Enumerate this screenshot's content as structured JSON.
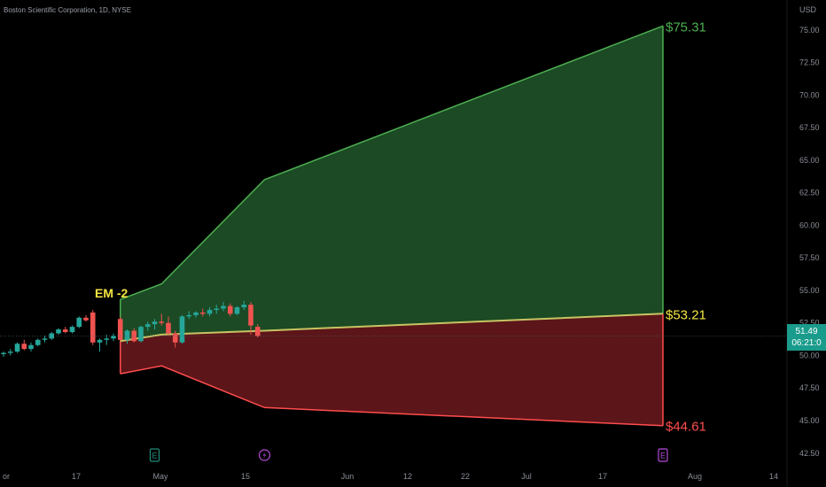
{
  "chart_title": "Boston Scientific Corporation, 1D, NYSE",
  "currency": "USD",
  "current_price": "51.49",
  "countdown": "06:21:0",
  "em_label": "EM -2",
  "colors": {
    "up": "#26a69a",
    "down": "#ef5350",
    "upper_band_line": "#4caf50",
    "upper_band_fill": "#1b4a24",
    "lower_band_line": "#ff4d4d",
    "lower_band_fill": "#5c1519",
    "mid_line": "#c7c463",
    "em_label": "#f5e642",
    "price_tag": "#1a9c8c",
    "axis_text": "#8b8f99",
    "earnings_badge": "#1f8a7a",
    "dividend_badge": "#b44bd6",
    "forward_earnings_badge": "#b44bd6"
  },
  "event_badges": [
    {
      "label": "E",
      "type": "earnings",
      "date_index": 22
    },
    {
      "label": "dividend-icon",
      "type": "dividend",
      "date_index": 38
    },
    {
      "label": "E",
      "type": "earnings-upcoming",
      "date_index": 96
    }
  ],
  "chart_data": {
    "type": "candlestick-with-expected-move-cone",
    "y_axis": {
      "ticks": [
        42.5,
        45.0,
        47.5,
        50.0,
        52.5,
        55.0,
        57.5,
        60.0,
        62.5,
        65.0,
        67.5,
        70.0,
        72.5,
        75.0
      ],
      "range": [
        41.6,
        77.3
      ]
    },
    "x_axis": {
      "ticks": [
        "or",
        "17",
        "May",
        "15",
        "Jun",
        "12",
        "22",
        "Jul",
        "17",
        "Aug",
        "14"
      ]
    },
    "candles": [
      {
        "o": 50.1,
        "h": 50.3,
        "l": 49.9,
        "c": 50.2
      },
      {
        "o": 50.2,
        "h": 50.5,
        "l": 50.0,
        "c": 50.3
      },
      {
        "o": 50.3,
        "h": 51.0,
        "l": 50.2,
        "c": 50.9
      },
      {
        "o": 50.9,
        "h": 51.2,
        "l": 50.4,
        "c": 50.5
      },
      {
        "o": 50.5,
        "h": 51.0,
        "l": 50.3,
        "c": 50.8
      },
      {
        "o": 50.8,
        "h": 51.3,
        "l": 50.7,
        "c": 51.2
      },
      {
        "o": 51.2,
        "h": 51.5,
        "l": 51.0,
        "c": 51.3
      },
      {
        "o": 51.3,
        "h": 51.8,
        "l": 51.2,
        "c": 51.7
      },
      {
        "o": 51.7,
        "h": 52.1,
        "l": 51.6,
        "c": 52.0
      },
      {
        "o": 52.0,
        "h": 52.2,
        "l": 51.7,
        "c": 51.8
      },
      {
        "o": 51.8,
        "h": 52.3,
        "l": 51.7,
        "c": 52.2
      },
      {
        "o": 52.2,
        "h": 53.0,
        "l": 52.1,
        "c": 52.9
      },
      {
        "o": 52.9,
        "h": 53.1,
        "l": 52.6,
        "c": 52.7
      },
      {
        "o": 53.3,
        "h": 53.5,
        "l": 50.8,
        "c": 51.0
      },
      {
        "o": 51.0,
        "h": 51.3,
        "l": 50.3,
        "c": 51.2
      },
      {
        "o": 51.2,
        "h": 51.6,
        "l": 50.8,
        "c": 51.3
      },
      {
        "o": 51.3,
        "h": 51.7,
        "l": 51.1,
        "c": 51.5
      },
      {
        "o": 52.8,
        "h": 53.0,
        "l": 50.5,
        "c": 51.2
      },
      {
        "o": 51.2,
        "h": 52.0,
        "l": 50.9,
        "c": 51.9
      },
      {
        "o": 51.9,
        "h": 52.1,
        "l": 51.0,
        "c": 51.1
      },
      {
        "o": 51.1,
        "h": 52.3,
        "l": 51.0,
        "c": 52.2
      },
      {
        "o": 52.2,
        "h": 52.6,
        "l": 51.9,
        "c": 52.4
      },
      {
        "o": 52.4,
        "h": 52.8,
        "l": 52.0,
        "c": 52.6
      },
      {
        "o": 52.6,
        "h": 53.2,
        "l": 52.3,
        "c": 52.5
      },
      {
        "o": 52.5,
        "h": 53.0,
        "l": 51.5,
        "c": 51.7
      },
      {
        "o": 51.7,
        "h": 51.9,
        "l": 50.6,
        "c": 51.0
      },
      {
        "o": 51.0,
        "h": 53.1,
        "l": 50.9,
        "c": 53.0
      },
      {
        "o": 53.0,
        "h": 53.4,
        "l": 52.8,
        "c": 53.1
      },
      {
        "o": 53.1,
        "h": 53.4,
        "l": 52.9,
        "c": 53.3
      },
      {
        "o": 53.3,
        "h": 53.6,
        "l": 53.0,
        "c": 53.2
      },
      {
        "o": 53.2,
        "h": 53.7,
        "l": 53.0,
        "c": 53.5
      },
      {
        "o": 53.5,
        "h": 53.9,
        "l": 53.2,
        "c": 53.6
      },
      {
        "o": 53.6,
        "h": 54.1,
        "l": 53.4,
        "c": 53.8
      },
      {
        "o": 53.8,
        "h": 54.0,
        "l": 53.0,
        "c": 53.2
      },
      {
        "o": 53.2,
        "h": 53.8,
        "l": 53.1,
        "c": 53.7
      },
      {
        "o": 53.7,
        "h": 54.2,
        "l": 53.5,
        "c": 53.9
      },
      {
        "o": 53.9,
        "h": 54.1,
        "l": 51.6,
        "c": 52.3
      },
      {
        "o": 52.2,
        "h": 52.4,
        "l": 51.4,
        "c": 51.5
      }
    ],
    "candle_dates_index": [
      0,
      1,
      2,
      3,
      4,
      5,
      6,
      7,
      8,
      9,
      10,
      11,
      12,
      13,
      14,
      15,
      16,
      17,
      18,
      19,
      20,
      21,
      22,
      23,
      24,
      25,
      26,
      27,
      28,
      29,
      30,
      31,
      32,
      33,
      34,
      35,
      36,
      37
    ],
    "expected_move_cone": {
      "start_index": 17,
      "upper": [
        {
          "i": 17,
          "v": 54.3
        },
        {
          "i": 23,
          "v": 55.5
        },
        {
          "i": 38,
          "v": 63.5
        },
        {
          "i": 96,
          "v": 75.31
        }
      ],
      "mid": [
        {
          "i": 17,
          "v": 51.1
        },
        {
          "i": 23,
          "v": 51.6
        },
        {
          "i": 38,
          "v": 51.9
        },
        {
          "i": 96,
          "v": 53.21
        }
      ],
      "lower": [
        {
          "i": 17,
          "v": 48.6
        },
        {
          "i": 23,
          "v": 49.2
        },
        {
          "i": 38,
          "v": 46.0
        },
        {
          "i": 96,
          "v": 44.61
        }
      ]
    },
    "end_labels": {
      "upper": "$75.31",
      "mid": "$53.21",
      "lower": "$44.61"
    }
  }
}
